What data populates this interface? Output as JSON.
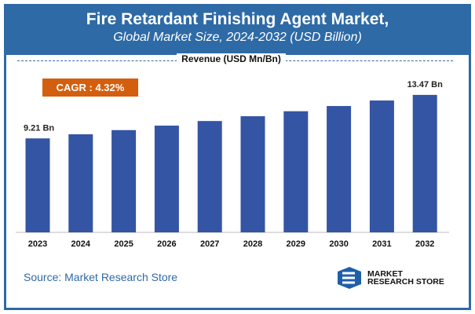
{
  "header": {
    "title": "Fire Retardant Finishing Agent Market,",
    "subtitle": "Global Market Size, 2024-2032 (USD Billion)"
  },
  "revenue_label": "Revenue (USD Mn/Bn)",
  "cagr": "CAGR : 4.32%",
  "source": "Source: Market Research Store",
  "logo": {
    "line1": "MARKET",
    "line2": "RESEARCH STORE"
  },
  "colors": {
    "header": "#2e6aa6",
    "bar": "#3454a4",
    "cagr": "#d35f0e"
  },
  "chart_data": {
    "type": "bar",
    "categories": [
      "2023",
      "2024",
      "2025",
      "2026",
      "2027",
      "2028",
      "2029",
      "2030",
      "2031",
      "2032"
    ],
    "values": [
      9.21,
      9.61,
      10.02,
      10.46,
      10.91,
      11.38,
      11.87,
      12.38,
      12.92,
      13.47
    ],
    "data_labels": {
      "0": "9.21 Bn",
      "9": "13.47 Bn"
    },
    "ylim": [
      0,
      14
    ],
    "grid": false,
    "title": "Fire Retardant Finishing Agent Market,",
    "subtitle": "Global Market Size, 2024-2032 (USD Billion)",
    "ylabel": "Revenue (USD Mn/Bn)"
  }
}
